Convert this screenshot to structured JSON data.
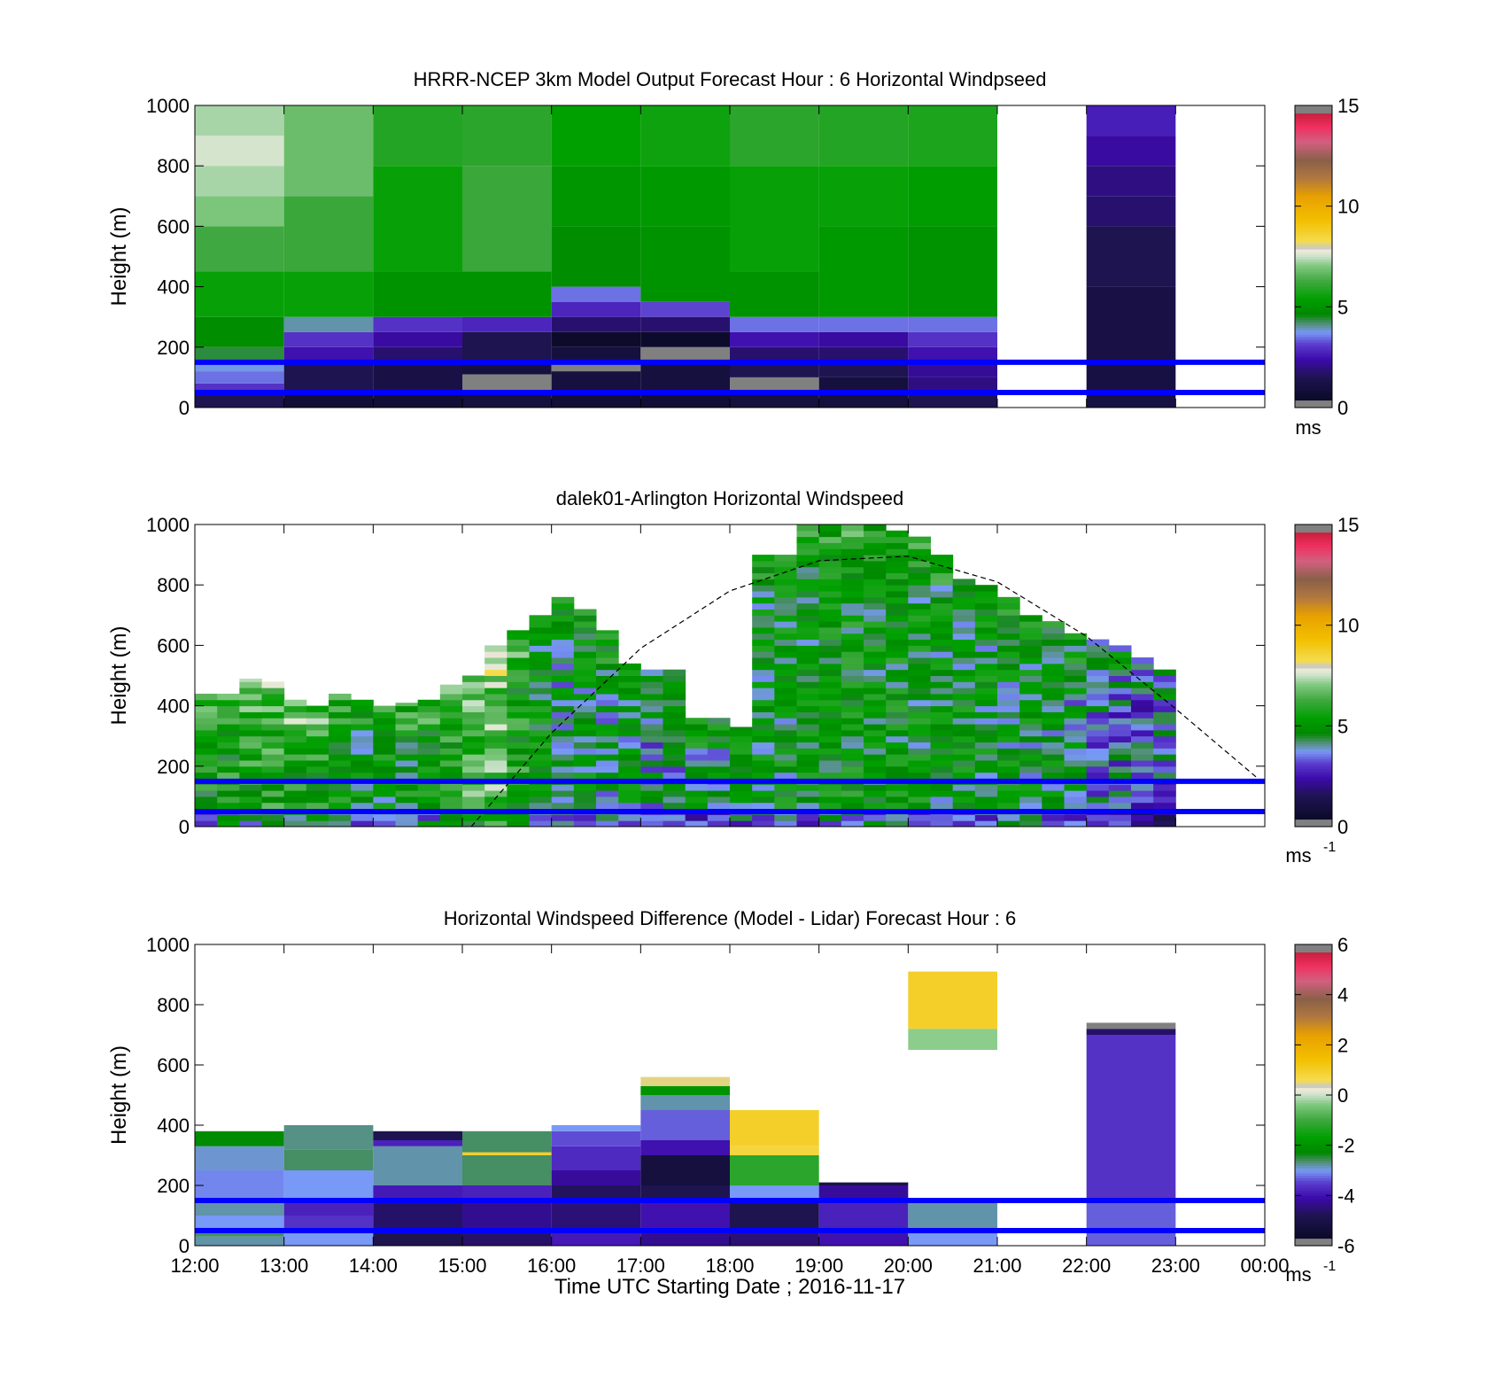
{
  "figure": {
    "xlabel": "Time UTC  Starting Date ; 2016-11-17",
    "x_ticks": [
      "12:00",
      "13:00",
      "14:00",
      "15:00",
      "16:00",
      "17:00",
      "18:00",
      "19:00",
      "20:00",
      "21:00",
      "22:00",
      "23:00",
      "00:00"
    ]
  },
  "chart_data": [
    {
      "type": "heatmap",
      "title": "HRRR-NCEP 3km Model Output   Forecast Hour : 6 Horizontal Windpseed",
      "ylabel": "Height (m)",
      "y_ticks": [
        "0",
        "200",
        "400",
        "600",
        "800",
        "1000"
      ],
      "ylim": [
        0,
        1000
      ],
      "xlim_hours": [
        12,
        24
      ],
      "colorbar": {
        "min": 0,
        "max": 15,
        "ticks": [
          "0",
          "5",
          "10",
          "15"
        ],
        "unit": "ms",
        "unit_sup": ""
      },
      "reference_lines_m": [
        50,
        150
      ],
      "columns": [
        {
          "t0": 12,
          "t1": 13,
          "bands": [
            [
              0,
              50,
              1.5
            ],
            [
              50,
              80,
              3
            ],
            [
              80,
              120,
              3.5
            ],
            [
              120,
              150,
              3.8
            ],
            [
              150,
              200,
              4.4
            ],
            [
              200,
              300,
              4.8
            ],
            [
              300,
              450,
              5.5
            ],
            [
              450,
              600,
              6.3
            ],
            [
              600,
              700,
              7
            ],
            [
              700,
              800,
              7.3
            ],
            [
              800,
              900,
              7.6
            ],
            [
              900,
              1000,
              7.3
            ]
          ]
        },
        {
          "t0": 13,
          "t1": 14,
          "bands": [
            [
              0,
              50,
              0.8
            ],
            [
              50,
              150,
              1.5
            ],
            [
              150,
              200,
              2.5
            ],
            [
              200,
              250,
              3
            ],
            [
              250,
              300,
              4
            ],
            [
              300,
              450,
              5.5
            ],
            [
              450,
              700,
              6.2
            ],
            [
              700,
              1000,
              6.8
            ]
          ]
        },
        {
          "t0": 14,
          "t1": 15,
          "bands": [
            [
              0,
              50,
              0.8
            ],
            [
              50,
              150,
              1.2
            ],
            [
              150,
              200,
              1.8
            ],
            [
              200,
              250,
              2.3
            ],
            [
              250,
              300,
              3
            ],
            [
              300,
              450,
              5
            ],
            [
              450,
              800,
              5.5
            ],
            [
              800,
              1000,
              5.9
            ]
          ]
        },
        {
          "t0": 15,
          "t1": 16,
          "bands": [
            [
              0,
              50,
              1
            ],
            [
              50,
              110,
              0.3
            ],
            [
              110,
              150,
              1
            ],
            [
              150,
              250,
              1.5
            ],
            [
              250,
              300,
              2.8
            ],
            [
              300,
              450,
              5
            ],
            [
              450,
              800,
              6.2
            ],
            [
              800,
              1000,
              6
            ]
          ]
        },
        {
          "t0": 16,
          "t1": 17,
          "bands": [
            [
              0,
              50,
              0.8
            ],
            [
              50,
              120,
              1
            ],
            [
              120,
              150,
              0.3
            ],
            [
              150,
              200,
              1
            ],
            [
              200,
              250,
              0.5
            ],
            [
              250,
              300,
              1.8
            ],
            [
              300,
              350,
              2.8
            ],
            [
              350,
              400,
              3.5
            ],
            [
              400,
              600,
              4.8
            ],
            [
              600,
              800,
              5.1
            ],
            [
              800,
              1000,
              5.4
            ]
          ]
        },
        {
          "t0": 17,
          "t1": 18,
          "bands": [
            [
              0,
              50,
              0.8
            ],
            [
              50,
              150,
              1
            ],
            [
              150,
              200,
              0.3
            ],
            [
              200,
              250,
              0.5
            ],
            [
              250,
              300,
              1.8
            ],
            [
              300,
              350,
              3.2
            ],
            [
              350,
              600,
              5
            ],
            [
              600,
              800,
              5.2
            ],
            [
              800,
              1000,
              5.6
            ]
          ]
        },
        {
          "t0": 18,
          "t1": 19,
          "bands": [
            [
              0,
              50,
              1
            ],
            [
              50,
              100,
              0.3
            ],
            [
              100,
              150,
              1.5
            ],
            [
              150,
              200,
              1.8
            ],
            [
              200,
              250,
              2.5
            ],
            [
              250,
              300,
              3.5
            ],
            [
              300,
              450,
              5
            ],
            [
              450,
              800,
              5.5
            ],
            [
              800,
              1000,
              6
            ]
          ]
        },
        {
          "t0": 19,
          "t1": 20,
          "bands": [
            [
              0,
              100,
              1
            ],
            [
              100,
              150,
              1.5
            ],
            [
              150,
              200,
              1.8
            ],
            [
              200,
              250,
              2.3
            ],
            [
              250,
              300,
              3.5
            ],
            [
              300,
              600,
              5.2
            ],
            [
              600,
              800,
              5.5
            ],
            [
              800,
              1000,
              5.9
            ]
          ]
        },
        {
          "t0": 20,
          "t1": 21,
          "bands": [
            [
              0,
              50,
              1.5
            ],
            [
              50,
              100,
              2
            ],
            [
              100,
              150,
              2.2
            ],
            [
              150,
              200,
              2.5
            ],
            [
              200,
              250,
              3
            ],
            [
              250,
              300,
              3.5
            ],
            [
              300,
              600,
              5
            ],
            [
              600,
              800,
              5.3
            ],
            [
              800,
              1000,
              5.8
            ]
          ]
        },
        {
          "t0": 22,
          "t1": 23,
          "bands": [
            [
              0,
              150,
              1.1
            ],
            [
              150,
              400,
              1.2
            ],
            [
              400,
              600,
              1.5
            ],
            [
              600,
              700,
              1.8
            ],
            [
              700,
              800,
              2
            ],
            [
              800,
              900,
              2.3
            ],
            [
              900,
              1000,
              2.7
            ]
          ]
        }
      ]
    },
    {
      "type": "heatmap",
      "title": "dalek01-Arlington  Horizontal Windspeed",
      "ylabel": "Height (m)",
      "y_ticks": [
        "0",
        "200",
        "400",
        "600",
        "800",
        "1000"
      ],
      "ylim": [
        0,
        1000
      ],
      "xlim_hours": [
        12,
        24
      ],
      "colorbar": {
        "min": 0,
        "max": 15,
        "ticks": [
          "0",
          "5",
          "10",
          "15"
        ],
        "unit": "ms",
        "unit_sup": "-1"
      },
      "reference_lines_m": [
        50,
        150
      ],
      "boundary_curve": {
        "x": [
          15.1,
          16,
          17,
          18,
          19,
          20,
          21,
          22,
          23,
          24
        ],
        "y": [
          0,
          310,
          590,
          780,
          880,
          895,
          810,
          630,
          390,
          140
        ]
      },
      "time_step_hours": 0.25,
      "profile_tops_m": [
        440,
        440,
        490,
        480,
        420,
        400,
        440,
        420,
        400,
        410,
        420,
        470,
        500,
        600,
        650,
        700,
        760,
        720,
        650,
        540,
        520,
        520,
        360,
        360,
        330,
        900,
        900,
        1000,
        1000,
        1000,
        1000,
        980,
        960,
        900,
        820,
        800,
        760,
        700,
        680,
        640,
        620,
        600,
        560,
        520
      ],
      "profile_speeds": [
        5.3,
        5.5,
        5.6,
        5.8,
        5.7,
        5.5,
        5.0,
        4.8,
        4.9,
        5.0,
        5.2,
        5.6,
        6.3,
        6.7,
        5.5,
        4.8,
        4.3,
        4.6,
        4.4,
        4.6,
        4.0,
        4.2,
        4.5,
        4.4,
        4.6,
        4.7,
        4.8,
        4.9,
        5.0,
        5.1,
        5.0,
        5.0,
        4.9,
        4.8,
        4.8,
        4.7,
        4.7,
        4.6,
        4.5,
        4.3,
        3.8,
        3.6,
        3.3,
        3.5
      ]
    },
    {
      "type": "heatmap",
      "title": "Horizontal Windspeed Difference (Model - Lidar) Forecast Hour : 6",
      "ylabel": "Height (m)",
      "y_ticks": [
        "0",
        "200",
        "400",
        "600",
        "800",
        "1000"
      ],
      "ylim": [
        0,
        1000
      ],
      "xlim_hours": [
        12,
        24
      ],
      "colorbar": {
        "min": -6,
        "max": 6,
        "ticks": [
          "-6",
          "-4",
          "-2",
          "0",
          "2",
          "4",
          "6"
        ],
        "unit": "ms",
        "unit_sup": "-1"
      },
      "reference_lines_m": [
        50,
        150
      ],
      "columns": [
        {
          "t0": 12,
          "t1": 13,
          "bands": [
            [
              0,
              30,
              -2.8
            ],
            [
              30,
              60,
              -2.6
            ],
            [
              60,
              100,
              -3
            ],
            [
              100,
              150,
              -2.8
            ],
            [
              150,
              250,
              -3.1
            ],
            [
              250,
              330,
              -2.9
            ],
            [
              330,
              380,
              -2.2
            ]
          ]
        },
        {
          "t0": 13,
          "t1": 14,
          "bands": [
            [
              0,
              50,
              -3
            ],
            [
              50,
              100,
              -3.6
            ],
            [
              100,
              150,
              -3.8
            ],
            [
              150,
              250,
              -3
            ],
            [
              250,
              320,
              -2.6
            ],
            [
              320,
              400,
              -2.7
            ]
          ]
        },
        {
          "t0": 14,
          "t1": 15,
          "bands": [
            [
              0,
              50,
              -4.8
            ],
            [
              50,
              150,
              -4.6
            ],
            [
              150,
              200,
              -3.9
            ],
            [
              200,
              330,
              -2.8
            ],
            [
              330,
              350,
              -3.8
            ],
            [
              350,
              380,
              -4.8
            ]
          ]
        },
        {
          "t0": 15,
          "t1": 16,
          "bands": [
            [
              0,
              50,
              -4.6
            ],
            [
              50,
              150,
              -4.3
            ],
            [
              150,
              200,
              -3.8
            ],
            [
              200,
              300,
              -2.6
            ],
            [
              300,
              310,
              1
            ],
            [
              310,
              380,
              -2.6
            ]
          ]
        },
        {
          "t0": 16,
          "t1": 17,
          "bands": [
            [
              0,
              50,
              -3.9
            ],
            [
              50,
              150,
              -4.5
            ],
            [
              150,
              200,
              -4.7
            ],
            [
              200,
              250,
              -4.2
            ],
            [
              250,
              330,
              -3.7
            ],
            [
              330,
              380,
              -3.4
            ],
            [
              380,
              400,
              -3
            ]
          ]
        },
        {
          "t0": 17,
          "t1": 18,
          "bands": [
            [
              0,
              50,
              -4.3
            ],
            [
              50,
              150,
              -4
            ],
            [
              150,
              200,
              -4.8
            ],
            [
              200,
              300,
              -5.2
            ],
            [
              300,
              350,
              -4
            ],
            [
              350,
              450,
              -3.3
            ],
            [
              450,
              500,
              -2.8
            ],
            [
              500,
              530,
              -2
            ],
            [
              530,
              560,
              0.5
            ]
          ]
        },
        {
          "t0": 18,
          "t1": 19,
          "bands": [
            [
              0,
              50,
              -4.5
            ],
            [
              50,
              150,
              -4.8
            ],
            [
              150,
              200,
              -3
            ],
            [
              200,
              300,
              -1.2
            ],
            [
              300,
              330,
              0.8
            ],
            [
              330,
              450,
              1
            ]
          ]
        },
        {
          "t0": 19,
          "t1": 20,
          "bands": [
            [
              0,
              50,
              -4
            ],
            [
              50,
              150,
              -3.8
            ],
            [
              150,
              200,
              -4.2
            ],
            [
              200,
              210,
              -5
            ]
          ]
        },
        {
          "t0": 20,
          "t1": 21,
          "bands": [
            [
              0,
              50,
              -3
            ],
            [
              50,
              150,
              -2.8
            ],
            [
              650,
              720,
              -0.3
            ],
            [
              720,
              910,
              1
            ]
          ]
        },
        {
          "t0": 22,
          "t1": 23,
          "bands": [
            [
              0,
              50,
              -3.3
            ],
            [
              50,
              150,
              -3.3
            ],
            [
              150,
              700,
              -3.6
            ],
            [
              700,
              720,
              -4.6
            ],
            [
              720,
              740,
              -6
            ]
          ]
        }
      ]
    }
  ]
}
